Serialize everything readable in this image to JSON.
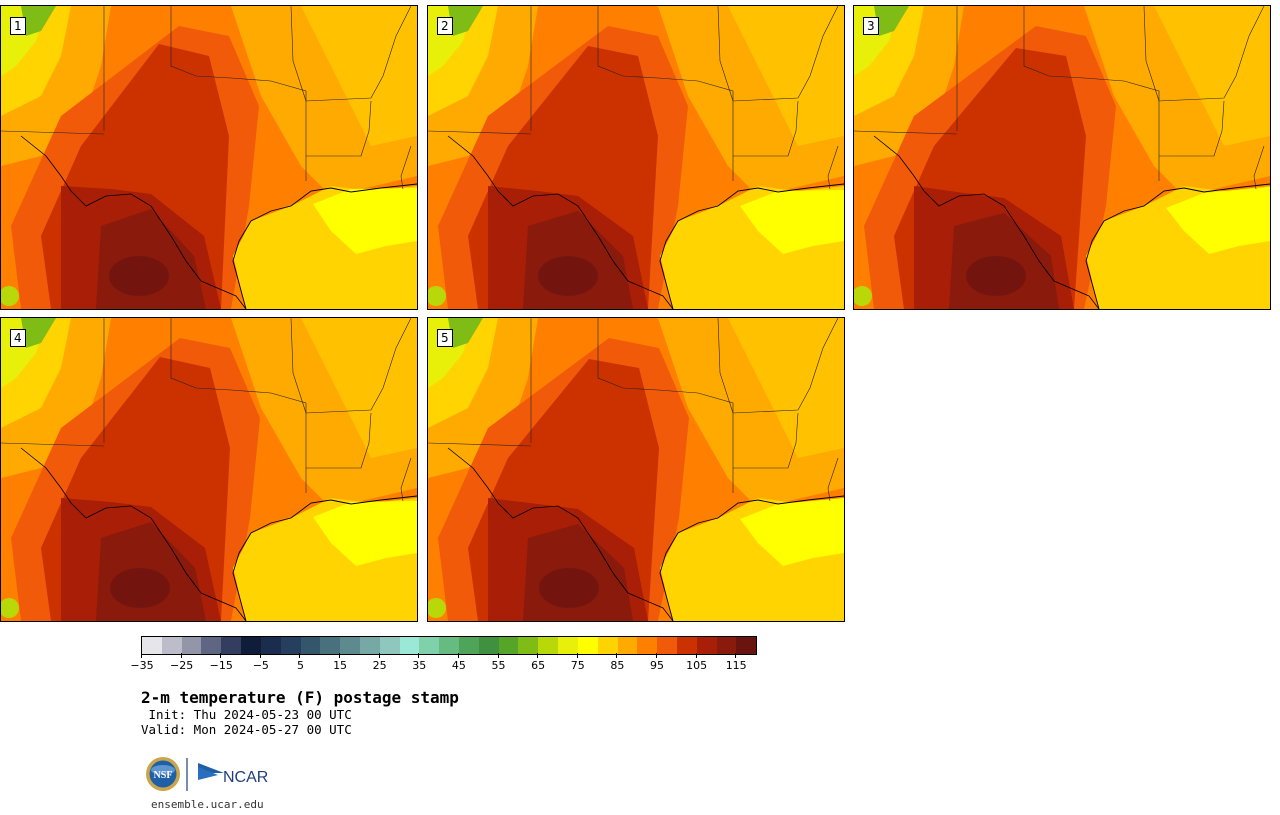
{
  "panels": [
    {
      "label": "1",
      "variant": 0
    },
    {
      "label": "2",
      "variant": 1
    },
    {
      "label": "3",
      "variant": 2
    },
    {
      "label": "4",
      "variant": 3
    },
    {
      "label": "5",
      "variant": 4
    }
  ],
  "colorbar": {
    "colors": [
      "#e6e6ea",
      "#bcbccb",
      "#9395a9",
      "#5f6683",
      "#323d5f",
      "#0f1c3a",
      "#1a2d4e",
      "#263f5e",
      "#33566d",
      "#48707d",
      "#5c8a8e",
      "#76a8a6",
      "#8fc6bd",
      "#9ce8d6",
      "#7fd1ac",
      "#66bb80",
      "#4ea55a",
      "#3f9140",
      "#55a628",
      "#7fbc16",
      "#b8d80a",
      "#e8f00a",
      "#ffff00",
      "#ffd400",
      "#ffaa00",
      "#ff8000",
      "#f05a08",
      "#cc3200",
      "#a81e06",
      "#8a1a0c",
      "#6a1410"
    ],
    "tick_labels": [
      "−35",
      "−25",
      "−15",
      "−5",
      "5",
      "15",
      "25",
      "35",
      "45",
      "55",
      "65",
      "75",
      "85",
      "95",
      "105",
      "115"
    ]
  },
  "title": "2-m temperature (F) postage stamp",
  "init_text": " Init: Thu 2024-05-23 00 UTC",
  "valid_text": "Valid: Mon 2024-05-27 00 UTC",
  "logos": {
    "left_logo": "NSF",
    "right_logo": "NCAR"
  },
  "url": "ensemble.ucar.edu"
}
